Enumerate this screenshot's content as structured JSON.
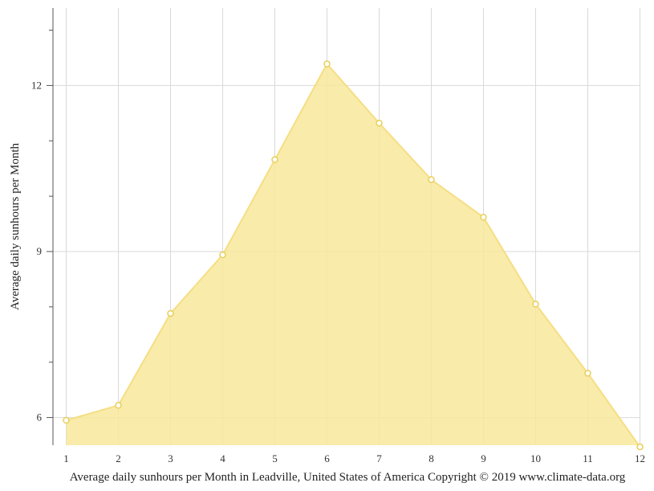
{
  "chart_data": {
    "type": "area",
    "caption": "Average daily sunhours per Month in Leadville, United States of America Copyright © 2019 www.climate-data.org",
    "ylabel": "Average daily sunhours per Month",
    "xlabel": "",
    "x": [
      1,
      2,
      3,
      4,
      5,
      6,
      7,
      8,
      9,
      10,
      11,
      12
    ],
    "x_tick_labels": [
      "1",
      "2",
      "3",
      "4",
      "5",
      "6",
      "7",
      "8",
      "9",
      "10",
      "11",
      "12"
    ],
    "y_ticks": [
      6,
      9,
      12
    ],
    "y_tick_labels": [
      "6",
      "9",
      "12"
    ],
    "ylim": [
      5.5,
      13.4
    ],
    "grid": true,
    "series": [
      {
        "values": [
          5.95,
          6.22,
          7.88,
          8.94,
          10.66,
          12.39,
          11.32,
          10.3,
          9.62,
          8.05,
          6.8,
          5.47
        ]
      }
    ],
    "colors": {
      "fill": "#f8e79a",
      "line": "#f5de84",
      "marker_fill": "#ffffff",
      "marker_stroke": "#e8cf5a",
      "grid": "#d9d9d9",
      "axis": "#555555"
    }
  }
}
